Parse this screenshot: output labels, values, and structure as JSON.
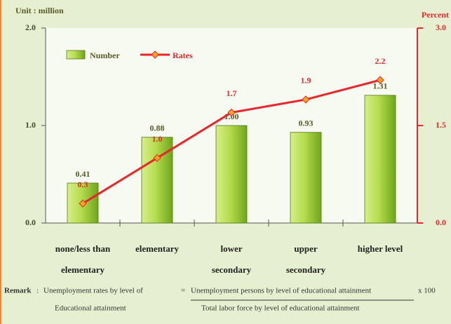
{
  "chart_data": {
    "type": "bar_line",
    "left_axis_label": "Unit : million",
    "right_axis_label": "Percent",
    "categories": [
      [
        "none/less than",
        "elementary"
      ],
      [
        "elementary"
      ],
      [
        "lower",
        "secondary"
      ],
      [
        "upper",
        "secondary"
      ],
      [
        "higher level"
      ]
    ],
    "series": [
      {
        "name": "Number",
        "color": "#8cbf2a",
        "values": [
          0.41,
          0.88,
          1,
          0.93,
          1.31
        ],
        "value_labels": [
          "0.41",
          "0.88",
          "1.00",
          "0.93",
          "1.31"
        ]
      },
      {
        "name": "Rates",
        "color": "#e8262b",
        "axis": "y2",
        "values": [
          0.3,
          1,
          1.7,
          1.9,
          2.2
        ],
        "value_labels": [
          "0.3",
          "1.0",
          "1.7",
          "1.9",
          "2.2"
        ]
      }
    ],
    "ylim": [
      0,
      2
    ],
    "yticks": [
      {
        "value": 0,
        "label": "0.0"
      },
      {
        "value": 1,
        "label": "1.0"
      },
      {
        "value": 2,
        "label": "2.0"
      }
    ],
    "y2lim": [
      0,
      3
    ],
    "y2ticks": [
      {
        "value": 0,
        "label": "0.0"
      },
      {
        "value": 1.5,
        "label": "1.5"
      },
      {
        "value": 3,
        "label": "3.0"
      }
    ],
    "legend": "top-left"
  },
  "remark": {
    "label": "Remark",
    "separator": ":",
    "left": [
      "Unemployment rates by level of",
      "Educational attainment"
    ],
    "equals": "=",
    "numerator": "Unemployment persons by level of educational attainment",
    "denominator": "Total labor force by level of educational attainment",
    "multiplier": "x 100"
  }
}
